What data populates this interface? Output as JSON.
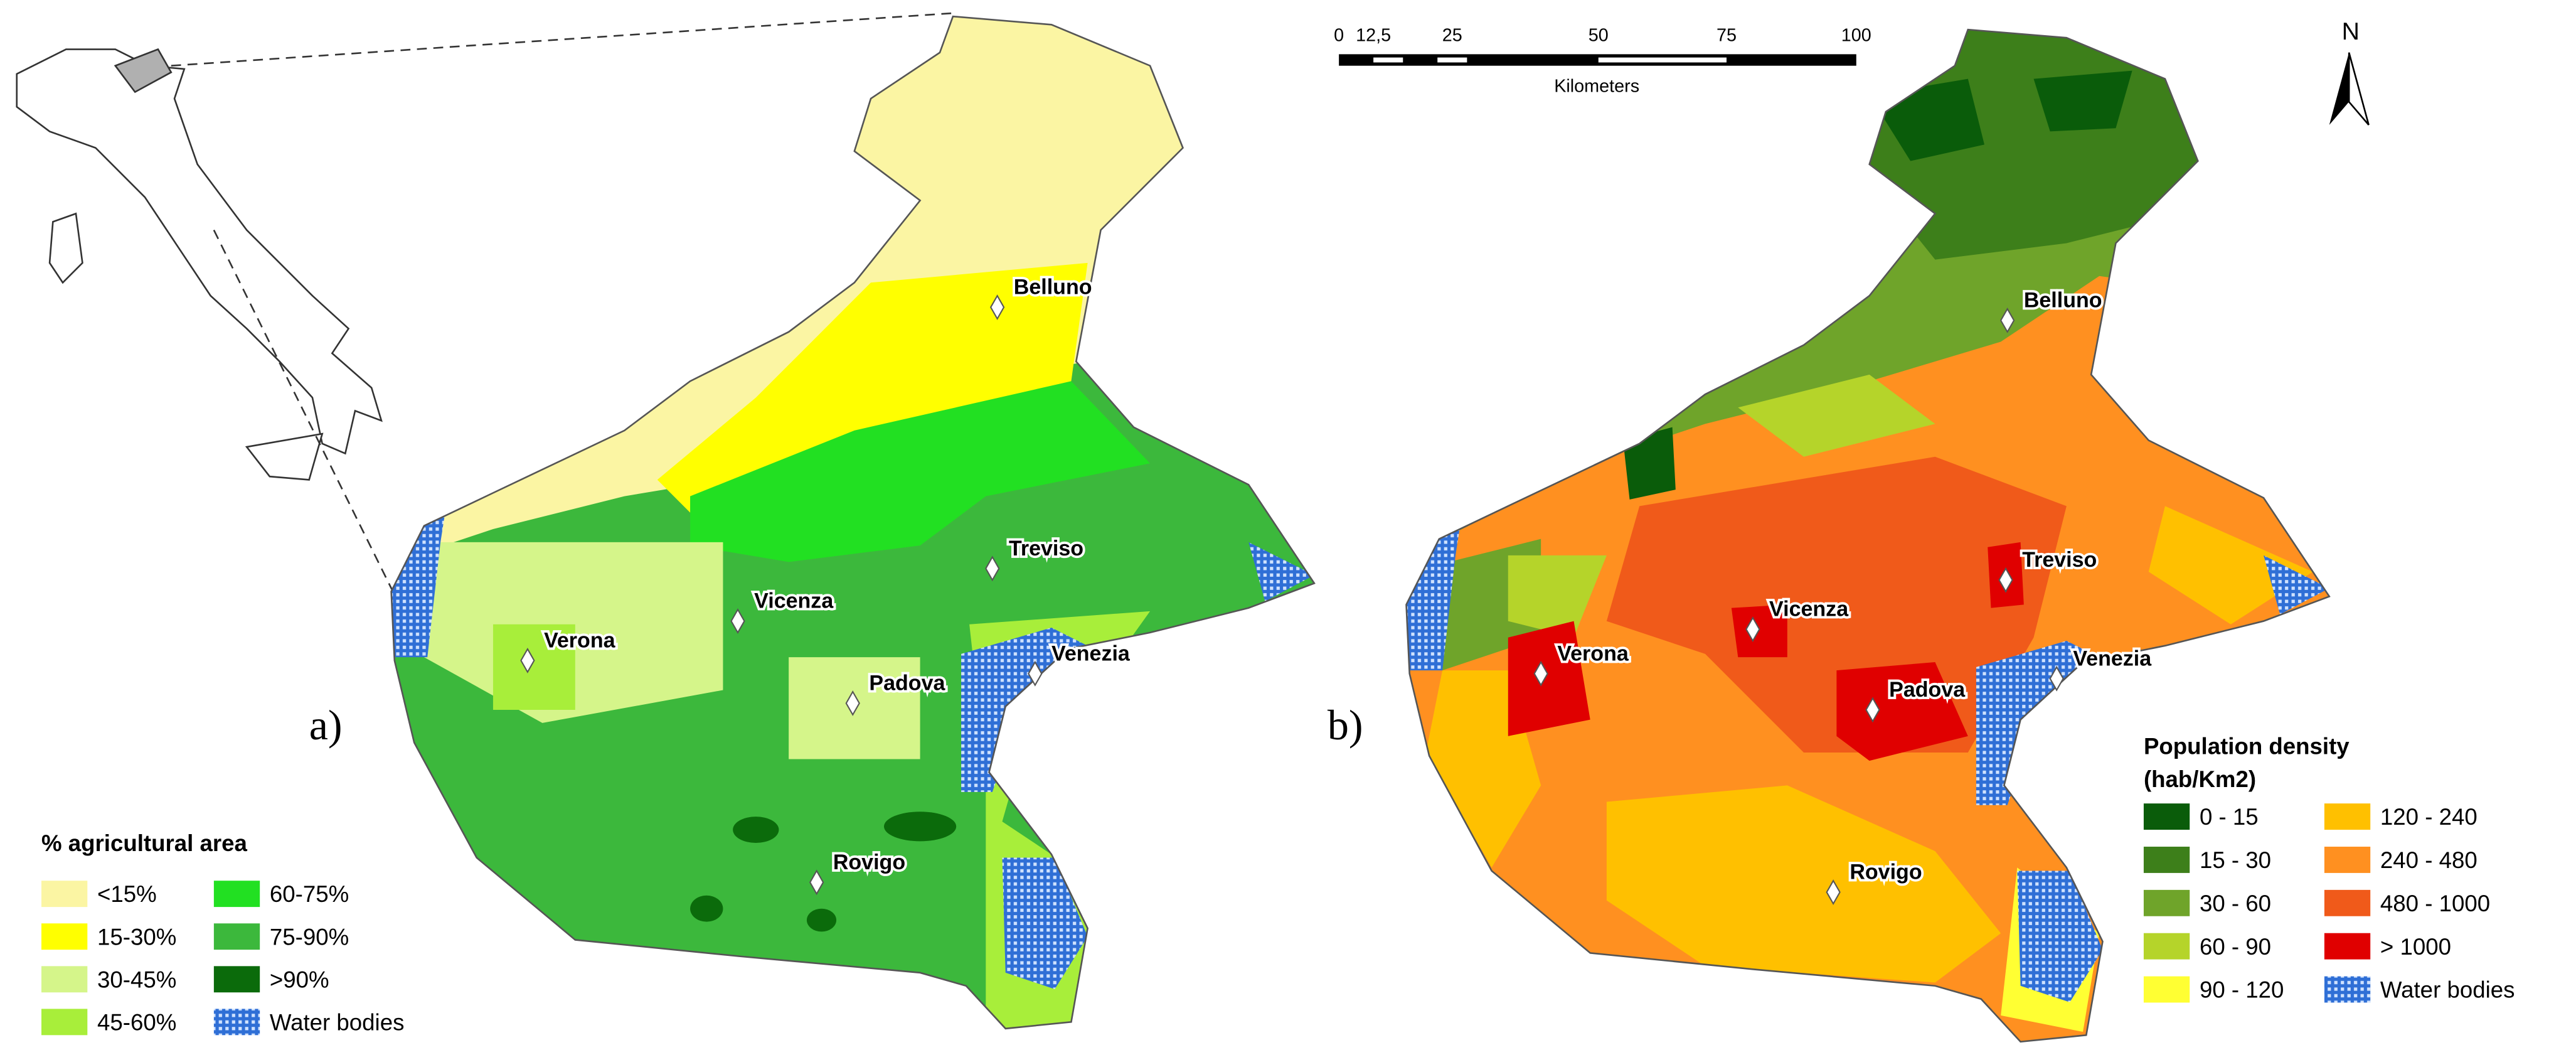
{
  "panel_a": {
    "label": "a)",
    "legend": {
      "title": "% agricultural area",
      "items": [
        {
          "label": "<15%",
          "color": "#fbf5a3"
        },
        {
          "label": "15-30%",
          "color": "#ffff00"
        },
        {
          "label": "30-45%",
          "color": "#d5f58a"
        },
        {
          "label": "45-60%",
          "color": "#a8ee3a"
        },
        {
          "label": "60-75%",
          "color": "#22e022"
        },
        {
          "label": "75-90%",
          "color": "#3cb83c"
        },
        {
          "label": ">90%",
          "color": "#0b6b0b"
        },
        {
          "label": "Water bodies",
          "color": "#2f6fd6",
          "pattern": true
        }
      ]
    },
    "cities": [
      "Belluno",
      "Treviso",
      "Vicenza",
      "Verona",
      "Padova",
      "Venezia",
      "Rovigo"
    ]
  },
  "panel_b": {
    "label": "b)",
    "legend": {
      "title": "Population density",
      "subtitle": "(hab/Km2)",
      "items": [
        {
          "label": "0 - 15",
          "color": "#0a5c0a"
        },
        {
          "label": "15 - 30",
          "color": "#3d7f1a"
        },
        {
          "label": "30 - 60",
          "color": "#6fa42a"
        },
        {
          "label": "60 - 90",
          "color": "#b5d42a"
        },
        {
          "label": "90 - 120",
          "color": "#ffff33"
        },
        {
          "label": "120 - 240",
          "color": "#ffc000"
        },
        {
          "label": "240 - 480",
          "color": "#ff9020"
        },
        {
          "label": "480 - 1000",
          "color": "#f05a1a"
        },
        {
          "label": "> 1000",
          "color": "#e00000"
        },
        {
          "label": "Water bodies",
          "color": "#2f6fd6",
          "pattern": true
        }
      ]
    },
    "cities": [
      "Belluno",
      "Treviso",
      "Vicenza",
      "Verona",
      "Padova",
      "Venezia",
      "Rovigo"
    ],
    "scale_bar": {
      "ticks": [
        "0",
        "12,5",
        "25",
        "50",
        "75",
        "100"
      ],
      "unit": "Kilometers"
    },
    "north": "N"
  }
}
